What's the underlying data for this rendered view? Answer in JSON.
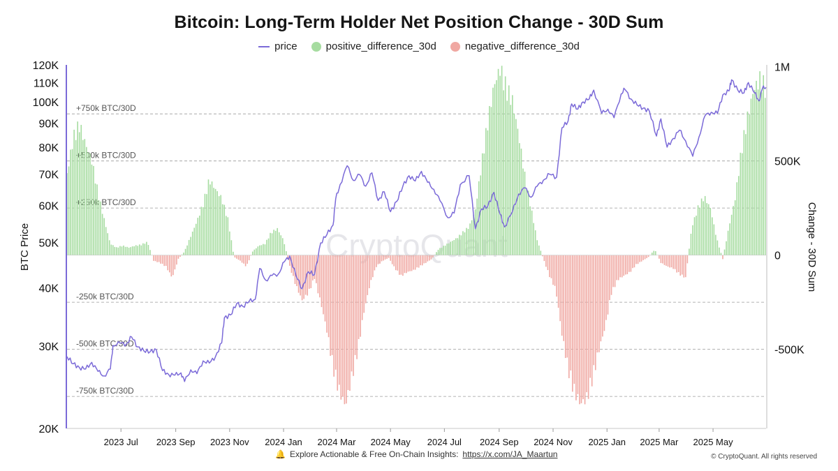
{
  "chart_data": {
    "type": "bar",
    "title": "Bitcoin: Long-Term Holder Net Position Change - 30D Sum",
    "watermark": "CryptoQuant",
    "legend": {
      "placement": "top-center",
      "items": [
        {
          "name": "price",
          "kind": "line",
          "color": "#7b6ad8"
        },
        {
          "name": "positive_difference_30d",
          "kind": "bar",
          "color": "#a6dca0"
        },
        {
          "name": "negative_difference_30d",
          "kind": "bar",
          "color": "#f0a8a2"
        }
      ]
    },
    "y_left": {
      "label": "BTC Price",
      "scale": "log",
      "range": [
        20000,
        120000
      ],
      "ticks": [
        {
          "value": 20000,
          "label": "20K"
        },
        {
          "value": 30000,
          "label": "30K"
        },
        {
          "value": 40000,
          "label": "40K"
        },
        {
          "value": 50000,
          "label": "50K"
        },
        {
          "value": 60000,
          "label": "60K"
        },
        {
          "value": 70000,
          "label": "70K"
        },
        {
          "value": 80000,
          "label": "80K"
        },
        {
          "value": 90000,
          "label": "90K"
        },
        {
          "value": 100000,
          "label": "100K"
        },
        {
          "value": 110000,
          "label": "110K"
        },
        {
          "value": 120000,
          "label": "120K"
        }
      ]
    },
    "y_right": {
      "label": "Change - 30D Sum",
      "range": [
        -920000,
        1010000
      ],
      "ticks": [
        {
          "value": 1000000,
          "label": "1M"
        },
        {
          "value": 500000,
          "label": "500K"
        },
        {
          "value": 0,
          "label": "0"
        },
        {
          "value": -500000,
          "label": "-500K"
        }
      ]
    },
    "reference_lines": [
      {
        "value": 750000,
        "label": "+750k BTC/30D"
      },
      {
        "value": 500000,
        "label": "+500k BTC/30D"
      },
      {
        "value": 250000,
        "label": "+250k BTC/30D"
      },
      {
        "value": -250000,
        "label": "-250k BTC/30D"
      },
      {
        "value": -500000,
        "label": "-500k BTC/30D"
      },
      {
        "value": -750000,
        "label": "-750k BTC/30D"
      }
    ],
    "x_axis": {
      "range": [
        "2023-05-01",
        "2025-06-30"
      ],
      "ticks": [
        {
          "date": "2023-07-01",
          "label": "2023 Jul"
        },
        {
          "date": "2023-09-01",
          "label": "2023 Sep"
        },
        {
          "date": "2023-11-01",
          "label": "2023 Nov"
        },
        {
          "date": "2024-01-01",
          "label": "2024 Jan"
        },
        {
          "date": "2024-03-01",
          "label": "2024 Mar"
        },
        {
          "date": "2024-05-01",
          "label": "2024 May"
        },
        {
          "date": "2024-07-01",
          "label": "2024 Jul"
        },
        {
          "date": "2024-09-01",
          "label": "2024 Sep"
        },
        {
          "date": "2024-11-01",
          "label": "2024 Nov"
        },
        {
          "date": "2025-01-01",
          "label": "2025 Jan"
        },
        {
          "date": "2025-03-01",
          "label": "2025 Mar"
        },
        {
          "date": "2025-05-01",
          "label": "2025 May"
        }
      ]
    },
    "price_series": [
      [
        "2023-05-01",
        28500
      ],
      [
        "2023-05-08",
        27500
      ],
      [
        "2023-05-15",
        27000
      ],
      [
        "2023-05-22",
        26800
      ],
      [
        "2023-05-29",
        27700
      ],
      [
        "2023-06-05",
        26500
      ],
      [
        "2023-06-12",
        25900
      ],
      [
        "2023-06-19",
        26800
      ],
      [
        "2023-06-22",
        30100
      ],
      [
        "2023-06-30",
        30450
      ],
      [
        "2023-07-07",
        30300
      ],
      [
        "2023-07-13",
        31400
      ],
      [
        "2023-07-20",
        29900
      ],
      [
        "2023-07-27",
        29300
      ],
      [
        "2023-08-03",
        29200
      ],
      [
        "2023-08-10",
        29500
      ],
      [
        "2023-08-17",
        26600
      ],
      [
        "2023-08-24",
        26100
      ],
      [
        "2023-08-31",
        26000
      ],
      [
        "2023-09-07",
        26300
      ],
      [
        "2023-09-11",
        25200
      ],
      [
        "2023-09-18",
        26700
      ],
      [
        "2023-09-25",
        26200
      ],
      [
        "2023-10-02",
        27900
      ],
      [
        "2023-10-09",
        27600
      ],
      [
        "2023-10-16",
        28500
      ],
      [
        "2023-10-23",
        30500
      ],
      [
        "2023-10-26",
        34500
      ],
      [
        "2023-11-02",
        35000
      ],
      [
        "2023-11-09",
        37000
      ],
      [
        "2023-11-16",
        36500
      ],
      [
        "2023-11-23",
        37400
      ],
      [
        "2023-11-30",
        37800
      ],
      [
        "2023-12-05",
        44000
      ],
      [
        "2023-12-12",
        41500
      ],
      [
        "2023-12-19",
        42500
      ],
      [
        "2023-12-26",
        42800
      ],
      [
        "2024-01-02",
        45500
      ],
      [
        "2024-01-08",
        46800
      ],
      [
        "2024-01-15",
        42500
      ],
      [
        "2024-01-22",
        39800
      ],
      [
        "2024-01-29",
        43300
      ],
      [
        "2024-02-05",
        42700
      ],
      [
        "2024-02-12",
        49900
      ],
      [
        "2024-02-19",
        52000
      ],
      [
        "2024-02-26",
        54500
      ],
      [
        "2024-02-29",
        62000
      ],
      [
        "2024-03-05",
        66500
      ],
      [
        "2024-03-13",
        73000
      ],
      [
        "2024-03-20",
        67900
      ],
      [
        "2024-03-27",
        69900
      ],
      [
        "2024-04-03",
        66000
      ],
      [
        "2024-04-10",
        70500
      ],
      [
        "2024-04-17",
        61500
      ],
      [
        "2024-04-24",
        64200
      ],
      [
        "2024-05-01",
        58200
      ],
      [
        "2024-05-08",
        61200
      ],
      [
        "2024-05-15",
        66000
      ],
      [
        "2024-05-22",
        69500
      ],
      [
        "2024-05-29",
        67700
      ],
      [
        "2024-06-05",
        71000
      ],
      [
        "2024-06-12",
        67300
      ],
      [
        "2024-06-19",
        65000
      ],
      [
        "2024-06-26",
        61500
      ],
      [
        "2024-07-05",
        56500
      ],
      [
        "2024-07-12",
        57800
      ],
      [
        "2024-07-19",
        66500
      ],
      [
        "2024-07-29",
        69500
      ],
      [
        "2024-08-05",
        53500
      ],
      [
        "2024-08-12",
        59000
      ],
      [
        "2024-08-19",
        59800
      ],
      [
        "2024-08-26",
        64000
      ],
      [
        "2024-09-02",
        57500
      ],
      [
        "2024-09-07",
        54000
      ],
      [
        "2024-09-16",
        58200
      ],
      [
        "2024-09-23",
        63500
      ],
      [
        "2024-09-30",
        65500
      ],
      [
        "2024-10-07",
        62500
      ],
      [
        "2024-10-14",
        66000
      ],
      [
        "2024-10-21",
        68000
      ],
      [
        "2024-10-28",
        70000
      ],
      [
        "2024-11-05",
        69000
      ],
      [
        "2024-11-11",
        88000
      ],
      [
        "2024-11-18",
        91000
      ],
      [
        "2024-11-22",
        99000
      ],
      [
        "2024-11-29",
        96500
      ],
      [
        "2024-12-05",
        100000
      ],
      [
        "2024-12-12",
        101500
      ],
      [
        "2024-12-17",
        106000
      ],
      [
        "2024-12-26",
        94500
      ],
      [
        "2025-01-02",
        96500
      ],
      [
        "2025-01-09",
        92500
      ],
      [
        "2025-01-17",
        104000
      ],
      [
        "2025-01-21",
        106500
      ],
      [
        "2025-01-28",
        101500
      ],
      [
        "2025-02-04",
        98500
      ],
      [
        "2025-02-11",
        97000
      ],
      [
        "2025-02-18",
        95500
      ],
      [
        "2025-02-26",
        84500
      ],
      [
        "2025-03-03",
        92000
      ],
      [
        "2025-03-10",
        80000
      ],
      [
        "2025-03-17",
        83500
      ],
      [
        "2025-03-24",
        87000
      ],
      [
        "2025-03-31",
        82500
      ],
      [
        "2025-04-08",
        76500
      ],
      [
        "2025-04-15",
        84000
      ],
      [
        "2025-04-22",
        93500
      ],
      [
        "2025-04-29",
        95000
      ],
      [
        "2025-05-06",
        94500
      ],
      [
        "2025-05-12",
        103500
      ],
      [
        "2025-05-19",
        105500
      ],
      [
        "2025-05-22",
        111500
      ],
      [
        "2025-05-29",
        106000
      ],
      [
        "2025-06-05",
        104500
      ],
      [
        "2025-06-10",
        110000
      ],
      [
        "2025-06-17",
        104500
      ],
      [
        "2025-06-22",
        100500
      ],
      [
        "2025-06-26",
        107000
      ],
      [
        "2025-06-30",
        107500
      ]
    ],
    "difference_series": [
      [
        "2023-05-01",
        430000
      ],
      [
        "2023-05-08",
        620000
      ],
      [
        "2023-05-15",
        690000
      ],
      [
        "2023-05-22",
        590000
      ],
      [
        "2023-05-29",
        500000
      ],
      [
        "2023-06-05",
        330000
      ],
      [
        "2023-06-12",
        190000
      ],
      [
        "2023-06-19",
        60000
      ],
      [
        "2023-06-26",
        40000
      ],
      [
        "2023-07-03",
        50000
      ],
      [
        "2023-07-10",
        40000
      ],
      [
        "2023-07-17",
        50000
      ],
      [
        "2023-07-24",
        55000
      ],
      [
        "2023-07-31",
        70000
      ],
      [
        "2023-08-07",
        -30000
      ],
      [
        "2023-08-14",
        -40000
      ],
      [
        "2023-08-21",
        -60000
      ],
      [
        "2023-08-28",
        -120000
      ],
      [
        "2023-09-04",
        -20000
      ],
      [
        "2023-09-11",
        20000
      ],
      [
        "2023-09-18",
        100000
      ],
      [
        "2023-09-25",
        180000
      ],
      [
        "2023-10-02",
        270000
      ],
      [
        "2023-10-09",
        400000
      ],
      [
        "2023-10-16",
        350000
      ],
      [
        "2023-10-23",
        300000
      ],
      [
        "2023-10-30",
        190000
      ],
      [
        "2023-11-06",
        -10000
      ],
      [
        "2023-11-13",
        -30000
      ],
      [
        "2023-11-20",
        -60000
      ],
      [
        "2023-11-27",
        20000
      ],
      [
        "2023-12-04",
        50000
      ],
      [
        "2023-12-11",
        60000
      ],
      [
        "2023-12-18",
        120000
      ],
      [
        "2023-12-25",
        140000
      ],
      [
        "2024-01-01",
        80000
      ],
      [
        "2024-01-08",
        -60000
      ],
      [
        "2024-01-15",
        -160000
      ],
      [
        "2024-01-22",
        -240000
      ],
      [
        "2024-01-29",
        -200000
      ],
      [
        "2024-02-05",
        -120000
      ],
      [
        "2024-02-12",
        -250000
      ],
      [
        "2024-02-19",
        -400000
      ],
      [
        "2024-02-26",
        -590000
      ],
      [
        "2024-03-04",
        -720000
      ],
      [
        "2024-03-11",
        -800000
      ],
      [
        "2024-03-18",
        -650000
      ],
      [
        "2024-03-25",
        -500000
      ],
      [
        "2024-04-01",
        -300000
      ],
      [
        "2024-04-08",
        -150000
      ],
      [
        "2024-04-15",
        -60000
      ],
      [
        "2024-04-22",
        -30000
      ],
      [
        "2024-04-29",
        -15000
      ],
      [
        "2024-05-06",
        -70000
      ],
      [
        "2024-05-13",
        -110000
      ],
      [
        "2024-05-20",
        -90000
      ],
      [
        "2024-05-27",
        -80000
      ],
      [
        "2024-06-03",
        -60000
      ],
      [
        "2024-06-10",
        -40000
      ],
      [
        "2024-06-17",
        -20000
      ],
      [
        "2024-06-24",
        30000
      ],
      [
        "2024-07-01",
        50000
      ],
      [
        "2024-07-08",
        70000
      ],
      [
        "2024-07-15",
        90000
      ],
      [
        "2024-07-22",
        120000
      ],
      [
        "2024-07-29",
        150000
      ],
      [
        "2024-08-05",
        240000
      ],
      [
        "2024-08-12",
        480000
      ],
      [
        "2024-08-19",
        700000
      ],
      [
        "2024-08-26",
        900000
      ],
      [
        "2024-09-02",
        990000
      ],
      [
        "2024-09-09",
        880000
      ],
      [
        "2024-09-16",
        820000
      ],
      [
        "2024-09-23",
        640000
      ],
      [
        "2024-09-30",
        420000
      ],
      [
        "2024-10-07",
        250000
      ],
      [
        "2024-10-14",
        80000
      ],
      [
        "2024-10-21",
        -20000
      ],
      [
        "2024-10-28",
        -110000
      ],
      [
        "2024-11-04",
        -180000
      ],
      [
        "2024-11-11",
        -420000
      ],
      [
        "2024-11-18",
        -600000
      ],
      [
        "2024-11-25",
        -720000
      ],
      [
        "2024-12-02",
        -790000
      ],
      [
        "2024-12-09",
        -760000
      ],
      [
        "2024-12-16",
        -640000
      ],
      [
        "2024-12-23",
        -500000
      ],
      [
        "2024-12-30",
        -380000
      ],
      [
        "2025-01-06",
        -200000
      ],
      [
        "2025-01-13",
        -130000
      ],
      [
        "2025-01-20",
        -110000
      ],
      [
        "2025-01-27",
        -90000
      ],
      [
        "2025-02-03",
        -50000
      ],
      [
        "2025-02-10",
        -30000
      ],
      [
        "2025-02-17",
        -10000
      ],
      [
        "2025-02-24",
        30000
      ],
      [
        "2025-03-03",
        -40000
      ],
      [
        "2025-03-10",
        -60000
      ],
      [
        "2025-03-17",
        -70000
      ],
      [
        "2025-03-24",
        -100000
      ],
      [
        "2025-03-31",
        -120000
      ],
      [
        "2025-04-07",
        150000
      ],
      [
        "2025-04-14",
        250000
      ],
      [
        "2025-04-21",
        310000
      ],
      [
        "2025-04-28",
        250000
      ],
      [
        "2025-05-05",
        90000
      ],
      [
        "2025-05-12",
        -20000
      ],
      [
        "2025-05-19",
        150000
      ],
      [
        "2025-05-26",
        300000
      ],
      [
        "2025-06-02",
        550000
      ],
      [
        "2025-06-09",
        730000
      ],
      [
        "2025-06-16",
        880000
      ],
      [
        "2025-06-23",
        930000
      ],
      [
        "2025-06-30",
        880000
      ]
    ]
  },
  "footer": {
    "text": "Explore Actionable & Free On-Chain Insights:",
    "link": "https://x.com/JA_Maartun",
    "copyright": "© CryptoQuant. All rights reserved"
  },
  "colors": {
    "price_line": "#7b6ad8",
    "positive": "#a6dca0",
    "negative": "#f0a8a2",
    "axis_left": "#7b6ad8",
    "gridline": "#9a9a9a"
  }
}
